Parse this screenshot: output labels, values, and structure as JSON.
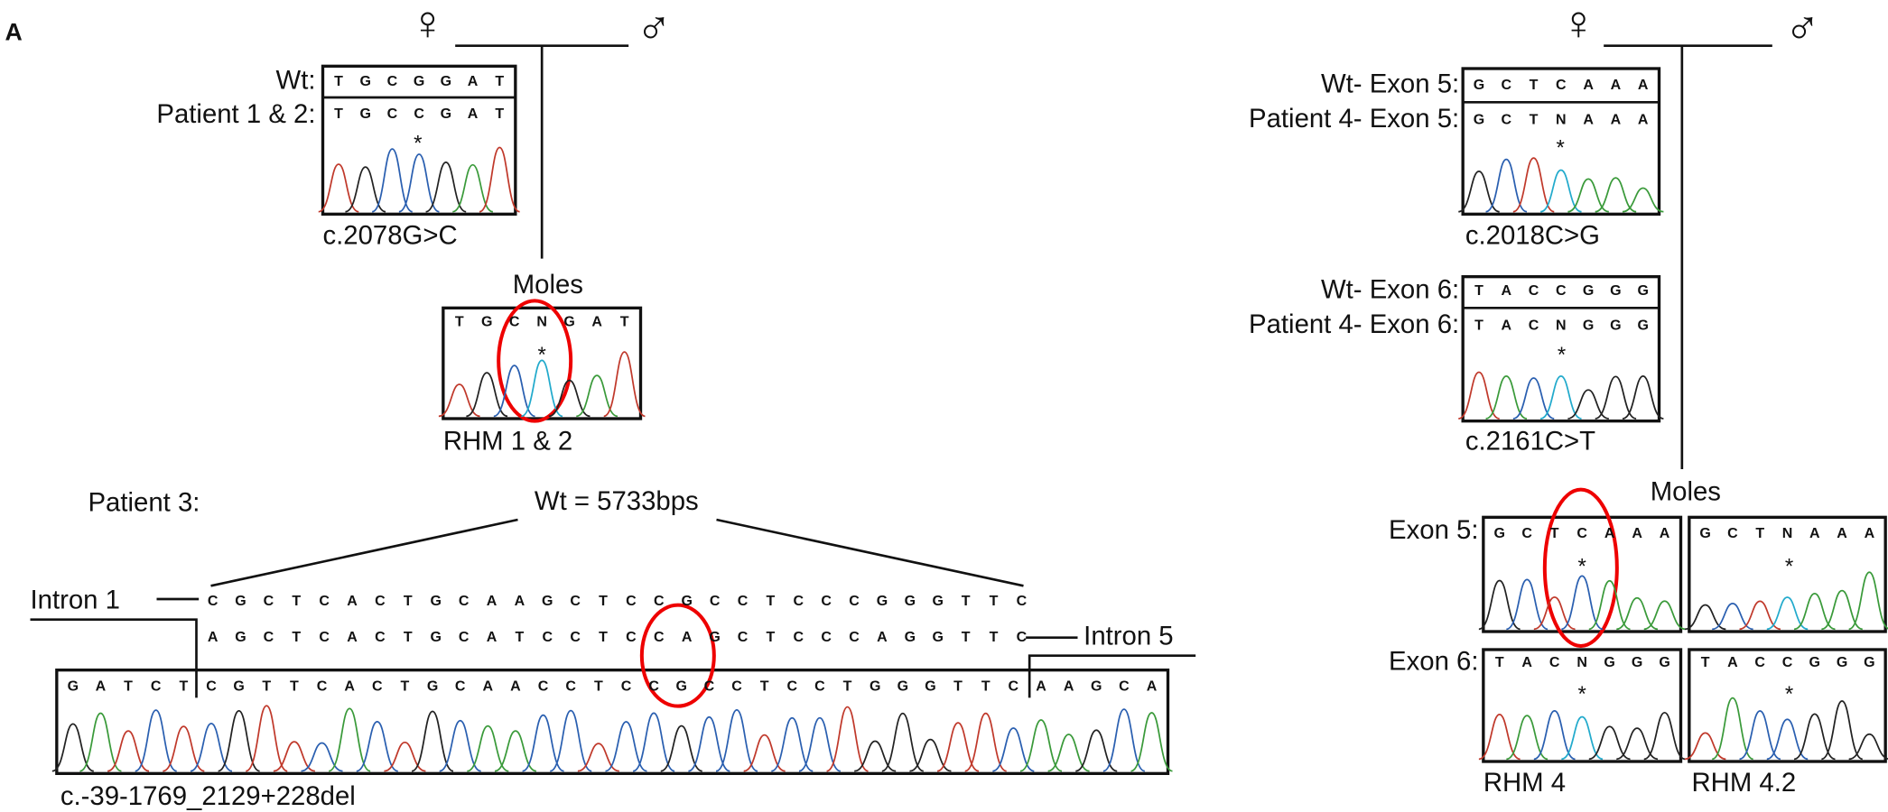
{
  "panel_label": "A",
  "left": {
    "female": "♀",
    "male": "♂",
    "wt_label": "Wt:",
    "wt_seq": "TGCGGAT",
    "patient_label": "Patient 1 & 2:",
    "patient_seq": "TGCCGAT",
    "star": "*",
    "mutation": "c.2078G>C",
    "moles_label": "Moles",
    "moles_seq": "TGCNGAT",
    "moles_star": "*",
    "moles_sample": "RHM 1 & 2"
  },
  "patient3": {
    "label": "Patient 3:",
    "wt_size": "Wt = 5733bps",
    "intron1": "Intron 1",
    "intron1_seq": "CGCTCACTGCAAGCTCCGCCTCCCGGGTTC",
    "intron5": "Intron 5",
    "intron5_seq": "AGCTCACTGCATCCTCCAGCTCCCAGGTTC",
    "trace_seq": "GATCTCGTTCACTGCAACCTCCGCCTCCTGGGTTCAAGCA",
    "deletion": "c.-39-1769_2129+228del"
  },
  "right": {
    "female": "♀",
    "male": "♂",
    "wt_exon5_label": "Wt- Exon 5:",
    "wt_exon5_seq": "GCTCAAA",
    "patient_exon5_label": "Patient 4- Exon 5:",
    "patient_exon5_seq": "GCTNAAA",
    "exon5_star": "*",
    "exon5_mutation": "c.2018C>G",
    "wt_exon6_label": "Wt- Exon 6:",
    "wt_exon6_seq": "TACCGGG",
    "patient_exon6_label": "Patient 4- Exon 6:",
    "patient_exon6_seq": "TACNGGG",
    "exon6_star": "*",
    "exon6_mutation": "c.2161C>T",
    "moles_label": "Moles",
    "moles_exon5_label": "Exon 5:",
    "rhm4_exon5_seq": "GCTCAAA",
    "rhm4_exon5_star": "*",
    "rhm42_exon5_seq": "GCTNAAA",
    "rhm42_exon5_star": "*",
    "moles_exon6_label": "Exon 6:",
    "rhm4_exon6_seq": "TACNGGG",
    "rhm4_exon6_star": "*",
    "rhm42_exon6_seq": "TACCGGG",
    "rhm42_exon6_star": "*",
    "rhm4_label": "RHM 4",
    "rhm42_label": "RHM 4.2"
  }
}
